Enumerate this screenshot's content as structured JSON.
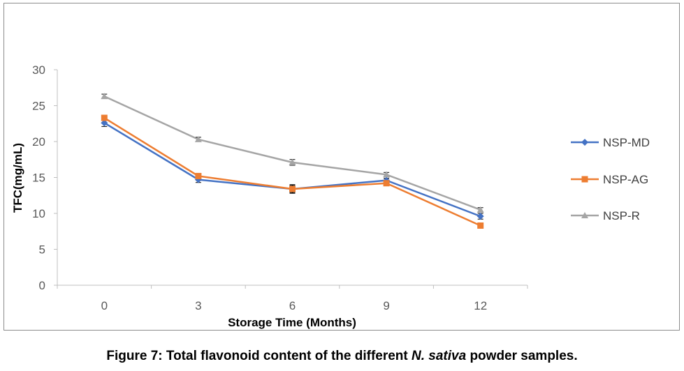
{
  "chart_data": {
    "type": "line",
    "x": [
      0,
      3,
      6,
      9,
      12
    ],
    "categories": [
      "0",
      "3",
      "6",
      "9",
      "12"
    ],
    "series": [
      {
        "name": "NSP-MD",
        "values": [
          22.6,
          14.7,
          13.4,
          14.6,
          9.6
        ],
        "errors": [
          0.5,
          0.4,
          0.6,
          0.3,
          0.4
        ],
        "color": "#4472C4",
        "marker": "diamond"
      },
      {
        "name": "NSP-AG",
        "values": [
          23.3,
          15.2,
          13.4,
          14.2,
          8.3
        ],
        "errors": [
          0.3,
          0.3,
          0.5,
          0.3,
          0.3
        ],
        "color": "#ED7D31",
        "marker": "square"
      },
      {
        "name": "NSP-R",
        "values": [
          26.3,
          20.3,
          17.1,
          15.4,
          10.5
        ],
        "errors": [
          0.3,
          0.3,
          0.4,
          0.3,
          0.3
        ],
        "color": "#A5A5A5",
        "marker": "triangle"
      }
    ],
    "xlabel": "Storage Time (Months)",
    "ylabel": "TFC(mg/mL)",
    "ylim": [
      0,
      30
    ],
    "yticks": [
      "0",
      "5",
      "10",
      "15",
      "20",
      "25",
      "30"
    ],
    "grid": false,
    "legend_position": "right"
  },
  "caption": {
    "prefix": "Figure 7:  Total flavonoid content of the different ",
    "italic": "N. sativa",
    "suffix": " powder samples."
  }
}
